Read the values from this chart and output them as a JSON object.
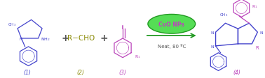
{
  "background_color": "#ffffff",
  "figsize": [
    3.78,
    1.13
  ],
  "dpi": 100,
  "blue": "#4444cc",
  "olive": "#888800",
  "purple": "#bb44bb",
  "green_fill": "#55dd55",
  "green_edge": "#229922",
  "green_text": "#229922",
  "gray": "#555555",
  "compound1_label": "(1)",
  "compound2_label": "(2)",
  "compound3_label": "(3)",
  "compound4_label": "(4)",
  "rcho_text": "R−CHO",
  "catalyst_text": "CuO NPs",
  "conditions_text": "Neat, 80 ºC"
}
